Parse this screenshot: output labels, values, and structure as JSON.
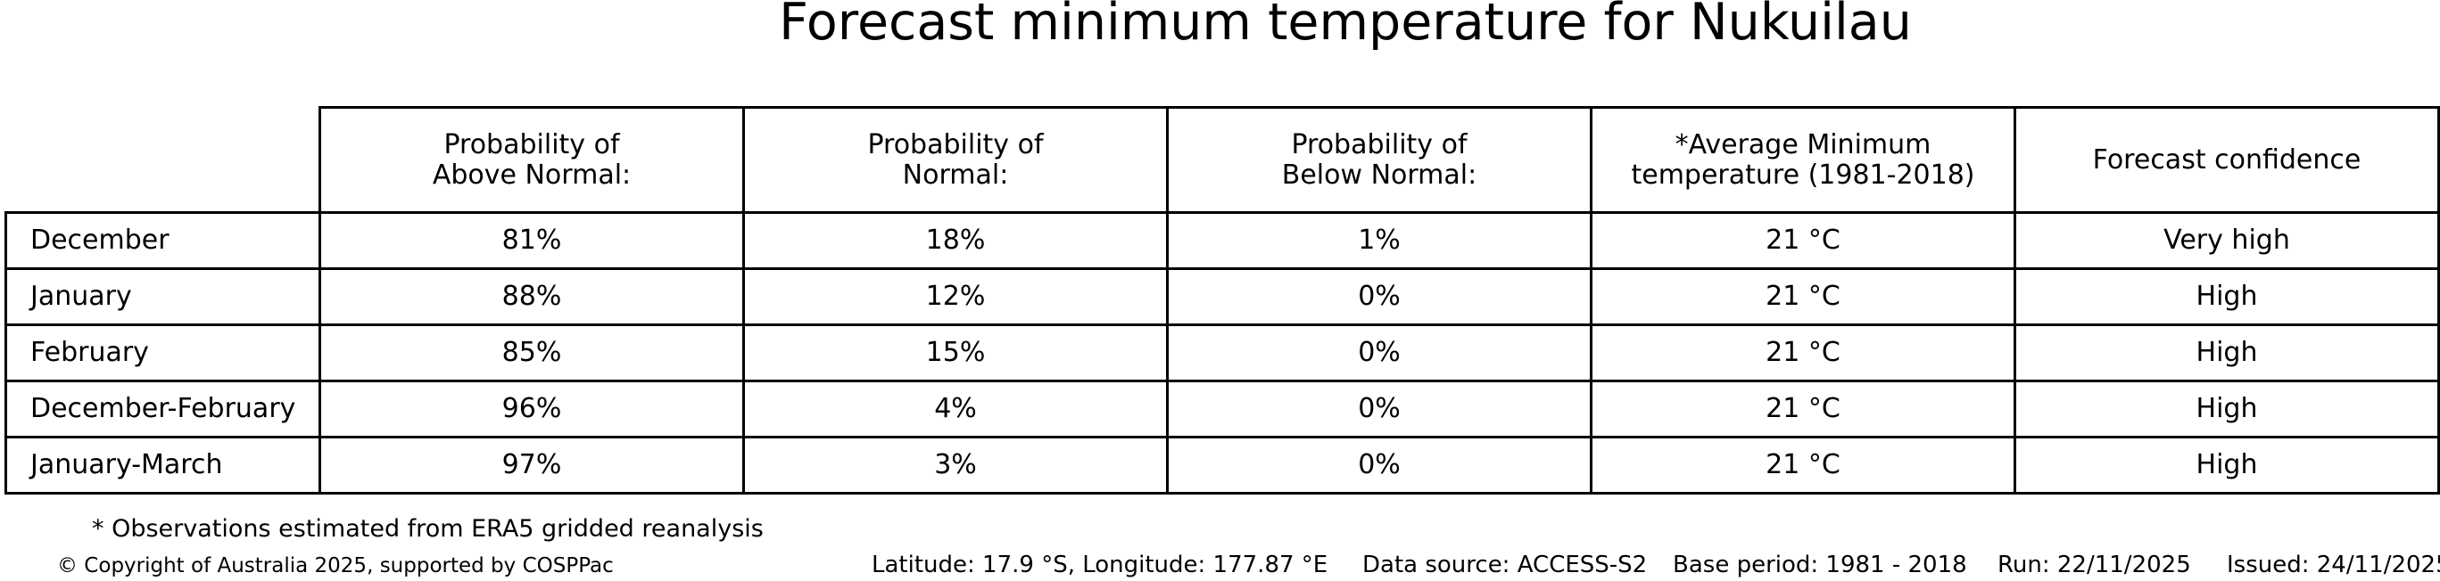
{
  "title": "Forecast minimum temperature for Nukuilau",
  "table": {
    "headers": [
      "Probability of\nAbove Normal:",
      "Probability of\nNormal:",
      "Probability of\nBelow Normal:",
      "*Average Minimum\ntemperature (1981-2018)",
      "Forecast confidence"
    ],
    "rows": [
      {
        "label": "December",
        "values": [
          "81%",
          "18%",
          "1%",
          "21 °C",
          "Very high"
        ]
      },
      {
        "label": "January",
        "values": [
          "88%",
          "12%",
          "0%",
          "21 °C",
          "High"
        ]
      },
      {
        "label": "February",
        "values": [
          "85%",
          "15%",
          "0%",
          "21 °C",
          "High"
        ]
      },
      {
        "label": "December-February",
        "values": [
          "96%",
          "4%",
          "0%",
          "21 °C",
          "High"
        ]
      },
      {
        "label": "January-March",
        "values": [
          "97%",
          "3%",
          "0%",
          "21 °C",
          "High"
        ]
      }
    ]
  },
  "footnote": "* Observations estimated from ERA5 gridded reanalysis",
  "footer": {
    "copyright": "© Copyright of Australia 2025, supported by COSPPac",
    "location": "Latitude: 17.9 °S, Longitude: 177.87 °E",
    "data_source": "Data source: ACCESS-S2",
    "base_period": "Base period: 1981 - 2018",
    "run": "Run: 22/11/2025",
    "issued": "Issued: 24/11/2025"
  },
  "colors": {
    "background": "#ffffff",
    "text": "#000000",
    "table_border": "#000000"
  },
  "chart_data": {
    "type": "table",
    "title": "Forecast minimum temperature for Nukuilau",
    "columns": [
      "",
      "Probability of Above Normal:",
      "Probability of Normal:",
      "Probability of Below Normal:",
      "*Average Minimum temperature (1981-2018)",
      "Forecast confidence"
    ],
    "rows": [
      [
        "December",
        "81%",
        "18%",
        "1%",
        "21 °C",
        "Very high"
      ],
      [
        "January",
        "88%",
        "12%",
        "0%",
        "21 °C",
        "High"
      ],
      [
        "February",
        "85%",
        "15%",
        "0%",
        "21 °C",
        "High"
      ],
      [
        "December-February",
        "96%",
        "4%",
        "0%",
        "21 °C",
        "High"
      ],
      [
        "January-March",
        "97%",
        "3%",
        "0%",
        "21 °C",
        "High"
      ]
    ],
    "probabilities_above_normal": [
      81,
      88,
      85,
      96,
      97
    ],
    "probabilities_normal": [
      18,
      12,
      15,
      4,
      3
    ],
    "probabilities_below_normal": [
      1,
      0,
      0,
      0,
      0
    ],
    "average_minimum_temperature_c": [
      21,
      21,
      21,
      21,
      21
    ],
    "forecast_confidence": [
      "Very high",
      "High",
      "High",
      "High",
      "High"
    ]
  }
}
